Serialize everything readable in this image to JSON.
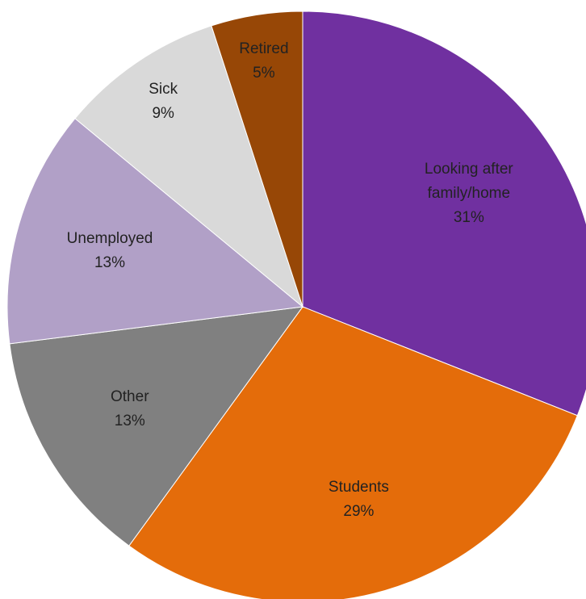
{
  "chart_data": {
    "type": "pie",
    "categories": [
      "Looking after family/home",
      "Students",
      "Other",
      "Unemployed",
      "Sick",
      "Retired"
    ],
    "values": [
      31,
      29,
      13,
      13,
      9,
      5
    ],
    "value_labels": [
      "31%",
      "29%",
      "13%",
      "13%",
      "9%",
      "5%"
    ],
    "colors": [
      "#7030a0",
      "#e46c0a",
      "#808080",
      "#b1a0c7",
      "#d9d9d9",
      "#974706"
    ]
  }
}
